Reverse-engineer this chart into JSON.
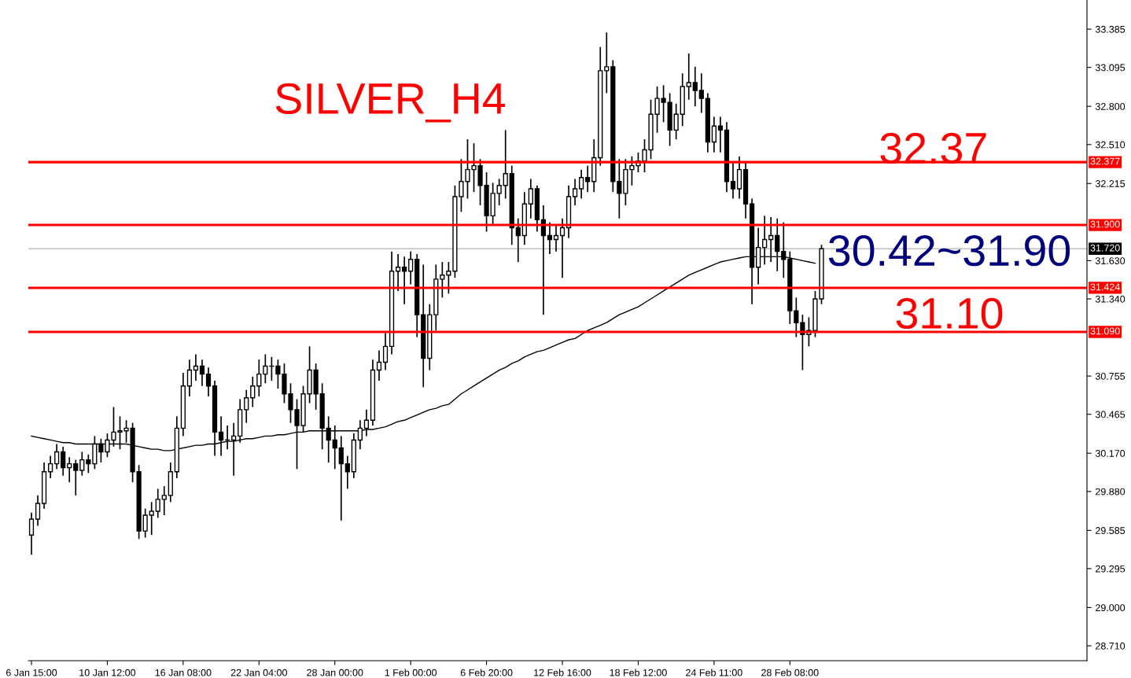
{
  "chart_data": {
    "type": "candlestick",
    "title": "SILVER_H4",
    "categories": [
      "6 Jan 15:00",
      null,
      null,
      null,
      null,
      null,
      null,
      null,
      null,
      null,
      null,
      null,
      "10 Jan 12:00",
      null,
      null,
      null,
      null,
      null,
      null,
      null,
      null,
      null,
      null,
      null,
      "16 Jan 08:00",
      null,
      null,
      null,
      null,
      null,
      null,
      null,
      null,
      null,
      null,
      null,
      "22 Jan 04:00",
      null,
      null,
      null,
      null,
      null,
      null,
      null,
      null,
      null,
      null,
      null,
      "28 Jan 00:00",
      null,
      null,
      null,
      null,
      null,
      null,
      null,
      null,
      null,
      null,
      null,
      "1 Feb 00:00",
      null,
      null,
      null,
      null,
      null,
      null,
      null,
      null,
      null,
      null,
      null,
      "6 Feb 20:00",
      null,
      null,
      null,
      null,
      null,
      null,
      null,
      null,
      null,
      null,
      null,
      "12 Feb 16:00",
      null,
      null,
      null,
      null,
      null,
      null,
      null,
      null,
      null,
      null,
      null,
      "18 Feb 12:00",
      null,
      null,
      null,
      null,
      null,
      null,
      null,
      null,
      null,
      null,
      null,
      "24 Feb 11:00",
      null,
      null,
      null,
      null,
      null,
      null,
      null,
      null,
      null,
      null,
      null,
      "28 Feb 08:00",
      null,
      null,
      null,
      null,
      null
    ],
    "ohlc": [
      [
        29.55,
        29.72,
        29.4,
        29.67
      ],
      [
        29.67,
        29.85,
        29.62,
        29.79
      ],
      [
        29.79,
        30.1,
        29.75,
        30.03
      ],
      [
        30.03,
        30.15,
        29.98,
        30.09
      ],
      [
        30.09,
        30.24,
        30.05,
        30.18
      ],
      [
        30.18,
        30.22,
        30.0,
        30.06
      ],
      [
        30.06,
        30.14,
        29.95,
        30.09
      ],
      [
        30.09,
        30.12,
        29.85,
        30.04
      ],
      [
        30.04,
        30.18,
        30.0,
        30.12
      ],
      [
        30.12,
        30.16,
        30.02,
        30.09
      ],
      [
        30.09,
        30.3,
        30.05,
        30.24
      ],
      [
        30.24,
        30.28,
        30.1,
        30.18
      ],
      [
        30.18,
        30.32,
        30.14,
        30.27
      ],
      [
        30.27,
        30.52,
        30.22,
        30.33
      ],
      [
        30.33,
        30.45,
        30.2,
        30.34
      ],
      [
        30.34,
        30.42,
        30.25,
        30.36
      ],
      [
        30.36,
        30.4,
        29.95,
        30.03
      ],
      [
        30.03,
        30.08,
        29.52,
        29.58
      ],
      [
        29.58,
        29.75,
        29.53,
        29.7
      ],
      [
        29.7,
        29.8,
        29.55,
        29.73
      ],
      [
        29.73,
        29.9,
        29.68,
        29.82
      ],
      [
        29.82,
        29.92,
        29.7,
        29.85
      ],
      [
        29.85,
        30.1,
        29.8,
        30.03
      ],
      [
        30.03,
        30.45,
        29.98,
        30.36
      ],
      [
        30.36,
        30.78,
        30.3,
        30.68
      ],
      [
        30.68,
        30.88,
        30.6,
        30.8
      ],
      [
        30.8,
        30.92,
        30.72,
        30.83
      ],
      [
        30.83,
        30.88,
        30.68,
        30.77
      ],
      [
        30.77,
        30.82,
        30.6,
        30.68
      ],
      [
        30.68,
        30.72,
        30.15,
        30.33
      ],
      [
        30.33,
        30.45,
        30.15,
        30.27
      ],
      [
        30.27,
        30.38,
        30.2,
        30.27
      ],
      [
        30.27,
        30.4,
        30.0,
        30.3
      ],
      [
        30.3,
        30.58,
        30.25,
        30.5
      ],
      [
        30.5,
        30.65,
        30.4,
        30.59
      ],
      [
        30.59,
        30.75,
        30.52,
        30.68
      ],
      [
        30.68,
        30.88,
        30.6,
        30.77
      ],
      [
        30.77,
        30.92,
        30.7,
        30.83
      ],
      [
        30.83,
        30.9,
        30.72,
        30.83
      ],
      [
        30.83,
        30.88,
        30.66,
        30.77
      ],
      [
        30.77,
        30.85,
        30.55,
        30.62
      ],
      [
        30.62,
        30.7,
        30.4,
        30.5
      ],
      [
        30.5,
        30.58,
        30.05,
        30.38
      ],
      [
        30.38,
        30.68,
        30.33,
        30.62
      ],
      [
        30.62,
        30.98,
        30.55,
        30.8
      ],
      [
        30.8,
        30.85,
        30.5,
        30.62
      ],
      [
        30.62,
        30.7,
        30.2,
        30.36
      ],
      [
        30.36,
        30.45,
        30.1,
        30.27
      ],
      [
        30.27,
        30.38,
        30.05,
        30.21
      ],
      [
        30.21,
        30.3,
        29.66,
        30.09
      ],
      [
        30.09,
        30.15,
        29.9,
        30.03
      ],
      [
        30.03,
        30.32,
        29.98,
        30.27
      ],
      [
        30.27,
        30.42,
        30.2,
        30.36
      ],
      [
        30.36,
        30.5,
        30.3,
        30.42
      ],
      [
        30.42,
        30.88,
        30.38,
        30.8
      ],
      [
        30.8,
        30.95,
        30.72,
        30.86
      ],
      [
        30.86,
        31.08,
        30.8,
        30.98
      ],
      [
        30.98,
        31.7,
        30.92,
        31.55
      ],
      [
        31.55,
        31.68,
        31.4,
        31.58
      ],
      [
        31.58,
        31.66,
        31.3,
        31.55
      ],
      [
        31.55,
        31.7,
        31.45,
        31.64
      ],
      [
        31.64,
        31.68,
        31.05,
        31.22
      ],
      [
        31.22,
        31.6,
        30.67,
        30.89
      ],
      [
        30.89,
        31.3,
        30.8,
        31.22
      ],
      [
        31.22,
        31.6,
        31.1,
        31.49
      ],
      [
        31.49,
        31.62,
        31.35,
        31.52
      ],
      [
        31.52,
        31.62,
        31.38,
        31.55
      ],
      [
        31.55,
        32.2,
        31.5,
        32.115
      ],
      [
        32.115,
        32.4,
        32.0,
        32.23
      ],
      [
        32.23,
        32.55,
        32.1,
        32.32
      ],
      [
        32.32,
        32.52,
        32.15,
        32.35
      ],
      [
        32.35,
        32.4,
        32.05,
        32.2
      ],
      [
        32.2,
        32.3,
        31.85,
        31.97
      ],
      [
        31.97,
        32.22,
        31.9,
        32.14
      ],
      [
        32.14,
        32.25,
        32.05,
        32.2
      ],
      [
        32.2,
        32.62,
        32.1,
        32.29
      ],
      [
        32.29,
        32.35,
        31.75,
        31.88
      ],
      [
        31.88,
        31.95,
        31.62,
        31.82
      ],
      [
        31.82,
        32.15,
        31.75,
        32.06
      ],
      [
        32.06,
        32.25,
        31.95,
        32.175
      ],
      [
        32.175,
        32.2,
        31.85,
        31.94
      ],
      [
        31.94,
        32.05,
        31.22,
        31.82
      ],
      [
        31.82,
        31.92,
        31.68,
        31.79
      ],
      [
        31.79,
        31.9,
        31.7,
        31.82
      ],
      [
        31.82,
        31.95,
        31.5,
        31.88
      ],
      [
        31.88,
        32.2,
        31.8,
        32.115
      ],
      [
        32.115,
        32.25,
        32.05,
        32.175
      ],
      [
        32.175,
        32.32,
        32.1,
        32.26
      ],
      [
        32.26,
        32.35,
        32.15,
        32.23
      ],
      [
        32.23,
        32.55,
        32.15,
        32.41
      ],
      [
        32.41,
        33.25,
        32.35,
        33.07
      ],
      [
        33.07,
        33.36,
        32.9,
        33.1
      ],
      [
        33.1,
        33.15,
        32.15,
        32.23
      ],
      [
        32.23,
        32.4,
        31.95,
        32.14
      ],
      [
        32.14,
        32.4,
        32.05,
        32.32
      ],
      [
        32.32,
        32.42,
        32.2,
        32.35
      ],
      [
        32.35,
        32.45,
        32.3,
        32.385
      ],
      [
        32.385,
        32.55,
        32.3,
        32.47
      ],
      [
        32.47,
        32.85,
        32.4,
        32.74
      ],
      [
        32.74,
        32.95,
        32.6,
        32.86
      ],
      [
        32.86,
        32.96,
        32.68,
        32.83
      ],
      [
        32.83,
        32.9,
        32.5,
        32.62
      ],
      [
        32.62,
        32.82,
        32.55,
        32.74
      ],
      [
        32.74,
        33.05,
        32.65,
        32.95
      ],
      [
        32.95,
        33.2,
        32.85,
        32.98
      ],
      [
        32.98,
        33.1,
        32.8,
        32.92
      ],
      [
        32.92,
        33.05,
        32.75,
        32.86
      ],
      [
        32.86,
        32.9,
        32.45,
        32.53
      ],
      [
        32.53,
        32.72,
        32.45,
        32.65
      ],
      [
        32.65,
        32.72,
        32.45,
        32.62
      ],
      [
        32.62,
        32.68,
        32.15,
        32.23
      ],
      [
        32.23,
        32.38,
        32.1,
        32.175
      ],
      [
        32.175,
        32.42,
        32.1,
        32.32
      ],
      [
        32.32,
        32.38,
        31.95,
        32.06
      ],
      [
        32.06,
        32.1,
        31.3,
        31.58
      ],
      [
        31.58,
        31.88,
        31.45,
        31.73
      ],
      [
        31.73,
        31.97,
        31.6,
        31.79
      ],
      [
        31.79,
        31.96,
        31.62,
        31.82
      ],
      [
        31.82,
        31.95,
        31.55,
        31.7
      ],
      [
        31.7,
        31.92,
        31.5,
        31.64
      ],
      [
        31.64,
        31.7,
        31.15,
        31.25
      ],
      [
        31.25,
        31.35,
        31.05,
        31.16
      ],
      [
        31.16,
        31.22,
        30.8,
        31.07
      ],
      [
        31.07,
        31.2,
        30.98,
        31.1
      ],
      [
        31.1,
        31.4,
        31.05,
        31.34
      ],
      [
        31.34,
        31.75,
        31.3,
        31.72
      ]
    ],
    "color": "#000000",
    "series": [
      {
        "type": "line",
        "color": "#000000",
        "values": [
          30.3,
          30.29,
          30.28,
          30.27,
          30.26,
          30.25,
          30.25,
          30.24,
          30.24,
          30.24,
          30.24,
          30.24,
          30.24,
          30.24,
          30.24,
          30.24,
          30.23,
          30.22,
          30.21,
          30.2,
          30.2,
          30.19,
          30.19,
          30.2,
          30.21,
          30.22,
          30.23,
          30.23,
          30.24,
          30.24,
          30.25,
          30.26,
          30.26,
          30.27,
          30.28,
          30.28,
          30.29,
          30.3,
          30.3,
          30.31,
          30.31,
          30.32,
          30.33,
          30.33,
          30.34,
          30.34,
          30.34,
          30.34,
          30.34,
          30.34,
          30.34,
          30.34,
          30.34,
          30.35,
          30.35,
          30.36,
          30.37,
          30.39,
          30.41,
          30.42,
          30.44,
          30.46,
          30.48,
          30.5,
          30.51,
          30.53,
          30.54,
          30.58,
          30.62,
          30.65,
          30.68,
          30.71,
          30.74,
          30.77,
          30.8,
          30.82,
          30.85,
          30.87,
          30.9,
          30.92,
          30.94,
          30.95,
          30.97,
          30.99,
          31.01,
          31.03,
          31.04,
          31.07,
          31.1,
          31.12,
          31.14,
          31.16,
          31.19,
          31.22,
          31.24,
          31.26,
          31.28,
          31.31,
          31.34,
          31.37,
          31.4,
          31.43,
          31.46,
          31.49,
          31.52,
          31.54,
          31.56,
          31.58,
          31.6,
          31.62,
          31.63,
          31.64,
          31.65,
          31.66,
          31.66,
          31.66,
          31.66,
          31.66,
          31.66,
          31.66,
          31.65,
          31.64,
          31.63,
          31.62,
          31.61,
          null
        ]
      }
    ],
    "ylim": [
      28.597,
      33.606
    ],
    "yticks": [
      33.385,
      33.095,
      {
        "value": 32.8,
        "label": "32.800"
      },
      {
        "value": 32.51,
        "label": "32.510"
      },
      32.215,
      {
        "value": 31.63,
        "label": "31.630"
      },
      {
        "value": 31.34,
        "label": "31.340"
      },
      30.755,
      30.465,
      {
        "value": 30.17,
        "label": "30.170"
      },
      {
        "value": 29.88,
        "label": "29.880"
      },
      29.585,
      29.295,
      {
        "value": 29.0,
        "label": "29.000"
      },
      {
        "value": 28.71,
        "label": "28.710"
      }
    ],
    "ref_lines": [
      {
        "axis": "y",
        "value": 32.377,
        "label": "32.377",
        "color": "#ff0000"
      },
      {
        "axis": "y",
        "value": 31.9,
        "label": "31.900",
        "color": "#ff0000"
      },
      {
        "axis": "y",
        "value": 31.424,
        "label": "31.424",
        "color": "#ff0000"
      },
      {
        "axis": "y",
        "value": 31.09,
        "label": "31.090",
        "color": "#ff0000"
      },
      {
        "axis": "y",
        "value": 31.72,
        "label": "31.720",
        "color": "#c0c0c0"
      }
    ],
    "annotations": [
      "32.37",
      "30.42~31.90",
      "31.10"
    ],
    "grid": false,
    "legend": false
  }
}
